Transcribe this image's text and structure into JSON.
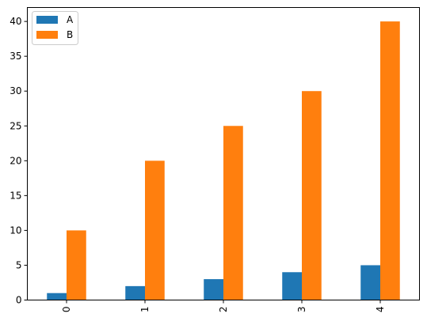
{
  "chart_data": {
    "type": "bar",
    "categories": [
      "0",
      "1",
      "2",
      "3",
      "4"
    ],
    "series": [
      {
        "name": "A",
        "color": "#1f77b4",
        "values": [
          1,
          2,
          3,
          4,
          5
        ]
      },
      {
        "name": "B",
        "color": "#ff7f0e",
        "values": [
          10,
          20,
          25,
          30,
          40
        ]
      }
    ],
    "ylim": [
      0,
      42
    ],
    "yticks": [
      0,
      5,
      10,
      15,
      20,
      25,
      30,
      35,
      40
    ],
    "xtick_rotation": "vertical",
    "legend_position": "upper-left",
    "grid": false,
    "title": "",
    "xlabel": "",
    "ylabel": ""
  }
}
